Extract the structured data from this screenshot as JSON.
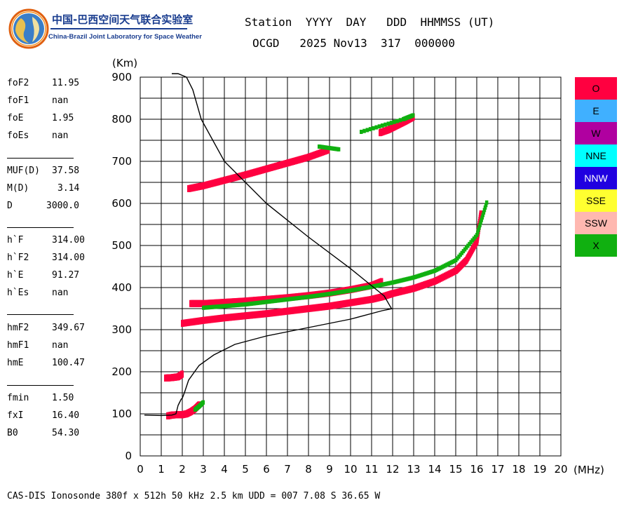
{
  "logo": {
    "cn_title": "中国-巴西空间天气联合实验室",
    "en_title": "China-Brazil Joint Laboratory for Space Weather"
  },
  "header": {
    "line1": "Station  YYYY  DAY   DDD  HHMMSS (UT)",
    "line2": "OCGD   2025 Nov13  317  000000"
  },
  "params": [
    {
      "label": "foF2",
      "value": "11.95"
    },
    {
      "label": "foF1",
      "value": "nan"
    },
    {
      "label": "foE",
      "value": "1.95"
    },
    {
      "label": "foEs",
      "value": "nan"
    },
    {
      "label": "MUF(D)",
      "value": "37.58"
    },
    {
      "label": "M(D)",
      "value": "3.14"
    },
    {
      "label": "D",
      "value": "3000.0"
    },
    {
      "label": "h`F",
      "value": "314.00"
    },
    {
      "label": "h`F2",
      "value": "314.00"
    },
    {
      "label": "h`E",
      "value": "91.27"
    },
    {
      "label": "h`Es",
      "value": "nan"
    },
    {
      "label": "hmF2",
      "value": "349.67"
    },
    {
      "label": "hmF1",
      "value": "nan"
    },
    {
      "label": "hmE",
      "value": "100.47"
    },
    {
      "label": "fmin",
      "value": "1.50"
    },
    {
      "label": "fxI",
      "value": "16.40"
    },
    {
      "label": "B0",
      "value": "54.30"
    }
  ],
  "legend": [
    {
      "label": "O",
      "color": "#ff0040"
    },
    {
      "label": "E",
      "color": "#40b0ff"
    },
    {
      "label": "W",
      "color": "#b000a0"
    },
    {
      "label": "NNE",
      "color": "#00ffff"
    },
    {
      "label": "NNW",
      "color": "#2000e0"
    },
    {
      "label": "SSE",
      "color": "#ffff30"
    },
    {
      "label": "SSW",
      "color": "#ffb8b0"
    },
    {
      "label": "X",
      "color": "#10b010"
    }
  ],
  "footer": "CAS-DIS Ionosonde 380f x 512h 50 kHz 2.5 km UDD = 007 7.08 S 36.65 W",
  "chart_data": {
    "type": "scatter",
    "xlabel": "(MHz)",
    "ylabel": "(Km)",
    "xlim": [
      0,
      20
    ],
    "ylim": [
      0,
      900
    ],
    "xticks": [
      0,
      1,
      2,
      3,
      4,
      5,
      6,
      7,
      8,
      9,
      10,
      11,
      12,
      13,
      14,
      15,
      16,
      17,
      18,
      19,
      20
    ],
    "yticks": [
      0,
      100,
      200,
      300,
      400,
      500,
      600,
      700,
      800,
      900
    ],
    "grid": true,
    "legend_position": "right",
    "series": [
      {
        "name": "O",
        "traces": [
          {
            "x": [
              1.3,
              1.5,
              1.8,
              2.0,
              2.2,
              2.4,
              2.6,
              2.8
            ],
            "y": [
              95,
              97,
              98,
              98,
              100,
              105,
              112,
              122
            ]
          },
          {
            "x": [
              1.2,
              1.5,
              1.8,
              2.0
            ],
            "y": [
              185,
              186,
              188,
              195
            ]
          },
          {
            "x": [
              2.0,
              3,
              4,
              5,
              6,
              7,
              8,
              9,
              10,
              11,
              11.5,
              12,
              13,
              14,
              15,
              15.5,
              16,
              16.2
            ],
            "y": [
              315,
              322,
              328,
              333,
              338,
              344,
              350,
              356,
              364,
              372,
              378,
              386,
              398,
              415,
              440,
              465,
              510,
              580
            ]
          },
          {
            "x": [
              2.4,
              3,
              4,
              5,
              6,
              7,
              8,
              9,
              10,
              11,
              11.5
            ],
            "y": [
              362,
              362,
              365,
              368,
              372,
              376,
              381,
              387,
              395,
              405,
              415
            ]
          },
          {
            "x": [
              2.3,
              3,
              4,
              5,
              6,
              7,
              8,
              9
            ],
            "y": [
              635,
              642,
              655,
              668,
              682,
              696,
              710,
              728
            ]
          },
          {
            "x": [
              11.4,
              11.8,
              12.2,
              12.6,
              13.0
            ],
            "y": [
              768,
              775,
              785,
              795,
              806
            ]
          }
        ]
      },
      {
        "name": "X",
        "traces": [
          {
            "x": [
              2.6,
              2.8,
              3.0
            ],
            "y": [
              110,
              118,
              128
            ]
          },
          {
            "x": [
              3.0,
              4,
              5,
              6,
              7,
              8,
              9,
              10,
              11,
              12,
              13,
              14,
              15,
              16,
              16.5
            ],
            "y": [
              352,
              356,
              360,
              366,
              372,
              378,
              385,
              393,
              402,
              412,
              424,
              440,
              465,
              525,
              608
            ]
          },
          {
            "x": [
              8.5,
              9.5
            ],
            "y": [
              735,
              728
            ]
          },
          {
            "x": [
              10.5,
              12.5,
              13.0
            ],
            "y": [
              770,
              800,
              810
            ]
          }
        ]
      }
    ],
    "profile": {
      "x": [
        0.2,
        1.0,
        1.5,
        1.7,
        1.8,
        1.95,
        2.0,
        2.1,
        2.3,
        2.8,
        3.5,
        4.5,
        6,
        8,
        10,
        11.5,
        11.95,
        11.6,
        10,
        8,
        6,
        4,
        2.9,
        2.5,
        2.2,
        1.8,
        1.5
      ],
      "y": [
        97,
        96,
        97,
        100,
        120,
        135,
        137,
        150,
        180,
        215,
        240,
        265,
        285,
        305,
        325,
        345,
        349.67,
        380,
        445,
        520,
        600,
        700,
        800,
        870,
        900,
        920,
        940
      ]
    }
  }
}
